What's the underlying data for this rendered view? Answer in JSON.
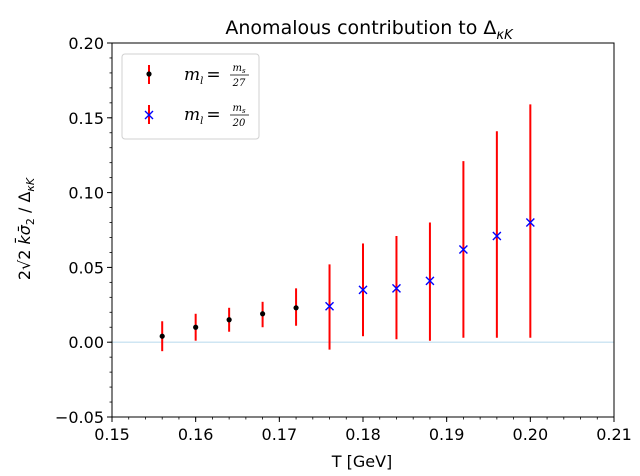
{
  "chart_data": {
    "type": "scatter",
    "title": "Anomalous contribution to ",
    "title_symbol": "Δ",
    "title_sub": "κK",
    "xlabel": "T [GeV]",
    "ylabel": "2√2 k̄σ̄₂ / Δ_κK",
    "xlim": [
      0.15,
      0.21
    ],
    "ylim": [
      -0.05,
      0.2
    ],
    "xticks": [
      0.15,
      0.16,
      0.17,
      0.18,
      0.19,
      0.2,
      0.21
    ],
    "xtick_labels": [
      "0.15",
      "0.16",
      "0.17",
      "0.18",
      "0.19",
      "0.20",
      "0.21"
    ],
    "yticks": [
      -0.05,
      0.0,
      0.05,
      0.1,
      0.15,
      0.2
    ],
    "ytick_labels": [
      "−0.05",
      "0.00",
      "0.05",
      "0.10",
      "0.15",
      "0.20"
    ],
    "hline_y": 0,
    "colors": {
      "errorbar": "#ff0000",
      "series1": "#000000",
      "series2": "#0000ff",
      "zero_line": "#cfe6f3"
    },
    "legend_position": "top-left",
    "series": [
      {
        "name": "m_l = m_s/27",
        "legend_prefix": "m",
        "legend_sub": "l",
        "legend_eq": "=",
        "legend_num": "m",
        "legend_num_sub": "s",
        "legend_den": "27",
        "marker": "dot",
        "points": [
          {
            "x": 0.156,
            "y": 0.004,
            "lo": -0.006,
            "hi": 0.014
          },
          {
            "x": 0.16,
            "y": 0.01,
            "lo": 0.001,
            "hi": 0.019
          },
          {
            "x": 0.164,
            "y": 0.015,
            "lo": 0.007,
            "hi": 0.023
          },
          {
            "x": 0.168,
            "y": 0.019,
            "lo": 0.01,
            "hi": 0.027
          },
          {
            "x": 0.172,
            "y": 0.023,
            "lo": 0.011,
            "hi": 0.036
          }
        ]
      },
      {
        "name": "m_l = m_s/20",
        "legend_prefix": "m",
        "legend_sub": "l",
        "legend_eq": "=",
        "legend_num": "m",
        "legend_num_sub": "s",
        "legend_den": "20",
        "marker": "x",
        "points": [
          {
            "x": 0.176,
            "y": 0.024,
            "lo": -0.005,
            "hi": 0.052
          },
          {
            "x": 0.18,
            "y": 0.035,
            "lo": 0.004,
            "hi": 0.066
          },
          {
            "x": 0.184,
            "y": 0.036,
            "lo": 0.002,
            "hi": 0.071
          },
          {
            "x": 0.188,
            "y": 0.041,
            "lo": 0.001,
            "hi": 0.08
          },
          {
            "x": 0.192,
            "y": 0.062,
            "lo": 0.003,
            "hi": 0.121
          },
          {
            "x": 0.196,
            "y": 0.071,
            "lo": 0.003,
            "hi": 0.141
          },
          {
            "x": 0.2,
            "y": 0.08,
            "lo": 0.003,
            "hi": 0.159
          }
        ]
      }
    ]
  }
}
